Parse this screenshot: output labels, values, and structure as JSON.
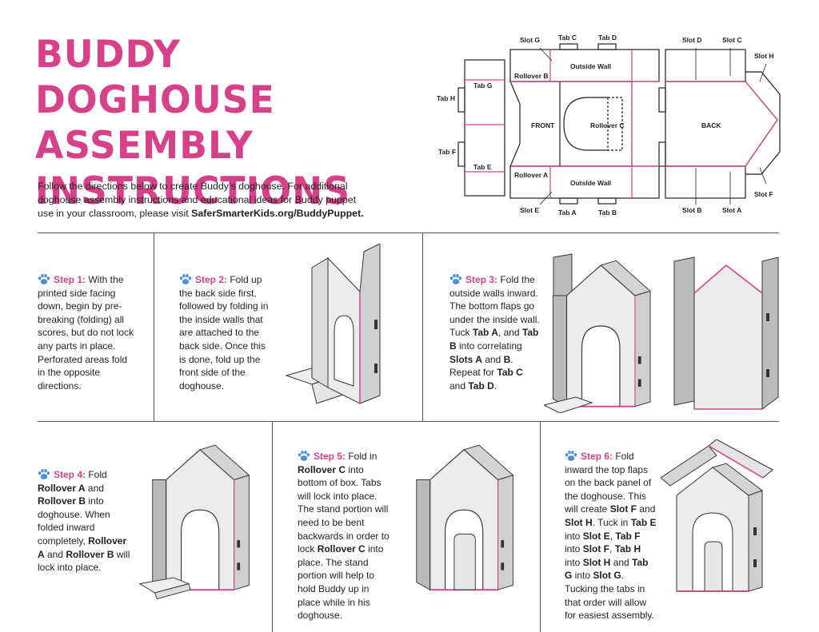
{
  "title": {
    "line1": "BUDDY DOGHOUSE",
    "line2": "ASSEMBLY",
    "line3": "INSTRUCTIONS"
  },
  "intro": {
    "text": "Follow the directions below to create Buddy’s doghouse. For additional doghouse assembly instructions and educational ideas for Buddy puppet use in your classroom, please visit ",
    "link": "SaferSmarterKids.org/BuddyPuppet."
  },
  "diagram": {
    "labels": {
      "slot_g": "Slot G",
      "tab_c": "Tab C",
      "tab_d": "Tab D",
      "slot_d": "Slot D",
      "slot_c": "Slot C",
      "slot_h": "Slot H",
      "rollover_b": "Rollover B",
      "outside_wall_top": "Outside Wall",
      "tab_g": "Tab G",
      "tab_h": "Tab H",
      "front": "FRONT",
      "rollover_c": "Rollover  C",
      "back": "BACK",
      "tab_f": "Tab F",
      "tab_e": "Tab E",
      "rollover_a": "Rollover A",
      "outside_wall_bottom": "Outside Wall",
      "slot_f": "Slot F",
      "slot_e": "Slot E",
      "tab_a": "Tab A",
      "tab_b": "Tab B",
      "slot_b": "Slot B",
      "slot_a": "Slot A"
    }
  },
  "colors": {
    "accent": "#d7418a",
    "paw": "#4a90d9",
    "text": "#231f20"
  },
  "steps": [
    {
      "label": "Step 1:",
      "text": " With the printed side facing down, begin by pre-breaking (folding) all scores, but do not lock any parts in place. Perforated areas fold in the opposite directions."
    },
    {
      "label": "Step 2:",
      "text": " Fold up the back side first, followed by folding in the inside walls that are attached to the back side. Once this is done, fold up the front side of the doghouse."
    },
    {
      "label": "Step 3:",
      "t1": " Fold the outside walls inward. The bottom flaps go under the inside wall. Tuck ",
      "b1": "Tab A",
      "t2": ", and ",
      "b2": "Tab B",
      "t3": " into correlating ",
      "b3": "Slots A",
      "t4": " and ",
      "b4": "B",
      "t5": ". Repeat for ",
      "b5": "Tab C",
      "t6": " and ",
      "b6": "Tab D",
      "t7": "."
    },
    {
      "label": "Step 4:",
      "t1": " Fold ",
      "b1": "Rollover A",
      "t2": " and ",
      "b2": "Rollover B",
      "t3": " into doghouse. When folded inward completely, ",
      "b3": "Rollover A",
      "t4": " and ",
      "b4": "Rollover B",
      "t5": " will lock into place."
    },
    {
      "label": "Step 5:",
      "t1": " Fold in ",
      "b1": "Rollover C",
      "t2": " into bottom of box. Tabs will lock into place. The stand portion will need to be bent backwards in order to lock ",
      "b2": "Rollover C",
      "t3": " into place. The stand portion will help to hold Buddy up in place while in his doghouse."
    },
    {
      "label": "Step 6:",
      "t1": " Fold inward the top flaps on the back panel of the doghouse. This will create ",
      "b1": "Slot F",
      "t2": " and ",
      "b2": "Slot H",
      "t3": ". Tuck in ",
      "b3": "Tab E",
      "t4": " into ",
      "b4": "Slot E",
      "t5": ", ",
      "b5": "Tab F",
      "t6": " into ",
      "b6": "Slot F",
      "t7": ", ",
      "b7": "Tab H",
      "t8": " into ",
      "b8": "Slot H",
      "t9": " and ",
      "b9": "Tab G",
      "t10": " into ",
      "b10": "Slot G",
      "t11": ". Tucking the tabs in that order will allow for easiest assembly."
    }
  ]
}
